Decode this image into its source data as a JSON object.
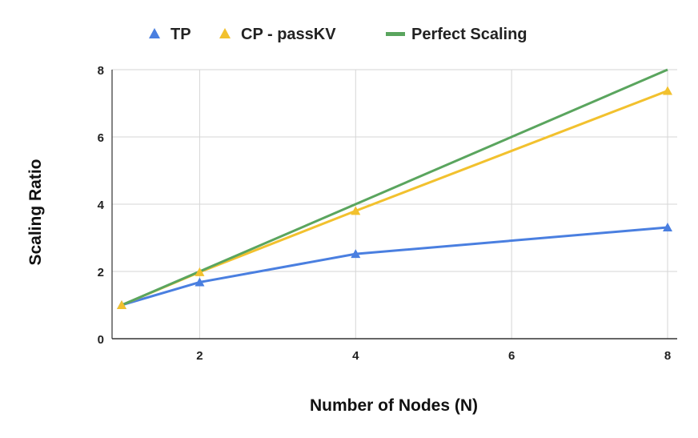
{
  "chart_data": {
    "type": "line",
    "xlabel": "Number of Nodes (N)",
    "ylabel": "Scaling Ratio",
    "xlim": [
      1,
      8
    ],
    "ylim": [
      0,
      8
    ],
    "xticks": [
      2,
      4,
      6,
      8
    ],
    "yticks": [
      0,
      2,
      4,
      6,
      8
    ],
    "grid": true,
    "legend_position": "top",
    "series": [
      {
        "name": "TP",
        "color": "#4a7fe0",
        "marker": "triangle",
        "x": [
          1,
          2,
          4,
          8
        ],
        "y": [
          1.0,
          1.68,
          2.52,
          3.31
        ]
      },
      {
        "name": "CP - passKV",
        "color": "#f2c12e",
        "marker": "triangle",
        "x": [
          1,
          2,
          4,
          8
        ],
        "y": [
          1.0,
          1.98,
          3.8,
          7.37
        ]
      },
      {
        "name": "Perfect Scaling",
        "color": "#5aa55e",
        "marker": "none",
        "x": [
          1,
          2,
          4,
          8
        ],
        "y": [
          1,
          2,
          4,
          8
        ]
      }
    ]
  }
}
